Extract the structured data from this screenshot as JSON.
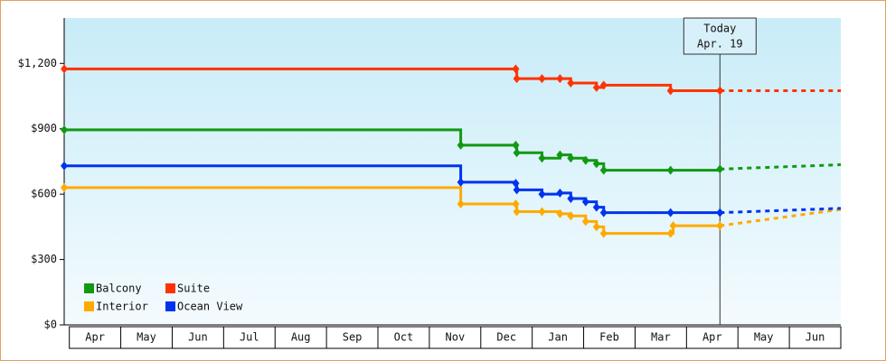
{
  "chart_data": {
    "type": "step-line",
    "xlim": [
      -0.1,
      15
    ],
    "ylim": [
      0,
      1400
    ],
    "yticks": [
      {
        "value": 0,
        "label": "$0"
      },
      {
        "value": 300,
        "label": "$300"
      },
      {
        "value": 600,
        "label": "$600"
      },
      {
        "value": 900,
        "label": "$900"
      },
      {
        "value": 1200,
        "label": "$1,200"
      }
    ],
    "xticks": [
      {
        "value": 0.5,
        "label": "Apr"
      },
      {
        "value": 1.5,
        "label": "May"
      },
      {
        "value": 2.5,
        "label": "Jun"
      },
      {
        "value": 3.5,
        "label": "Jul"
      },
      {
        "value": 4.5,
        "label": "Aug"
      },
      {
        "value": 5.5,
        "label": "Sep"
      },
      {
        "value": 6.5,
        "label": "Oct"
      },
      {
        "value": 7.5,
        "label": "Nov"
      },
      {
        "value": 8.5,
        "label": "Dec"
      },
      {
        "value": 9.5,
        "label": "Jan"
      },
      {
        "value": 10.5,
        "label": "Feb"
      },
      {
        "value": 11.5,
        "label": "Mar"
      },
      {
        "value": 12.5,
        "label": "Apr"
      },
      {
        "value": 13.5,
        "label": "May"
      },
      {
        "value": 14.5,
        "label": "Jun"
      }
    ],
    "today": {
      "x": 12.65,
      "label": [
        "Today",
        "Apr. 19"
      ]
    },
    "series": [
      {
        "name": "Balcony",
        "color": "#119911",
        "x": [
          -0.1,
          7.61,
          8.68,
          8.7,
          9.19,
          9.54,
          9.75,
          10.04,
          10.25,
          10.39,
          11.69,
          12.65
        ],
        "values": [
          895,
          825,
          825,
          790,
          765,
          780,
          765,
          755,
          740,
          710,
          710,
          715
        ],
        "forecast": {
          "x": [
            12.65,
            15
          ],
          "values": [
            715,
            735
          ]
        }
      },
      {
        "name": "Suite",
        "color": "#ff3300",
        "x": [
          -0.1,
          8.68,
          8.7,
          9.19,
          9.54,
          9.75,
          10.25,
          10.39,
          11.69,
          12.65
        ],
        "values": [
          1175,
          1175,
          1130,
          1130,
          1130,
          1110,
          1090,
          1100,
          1075,
          1075
        ],
        "forecast": {
          "x": [
            12.65,
            15
          ],
          "values": [
            1075,
            1075
          ]
        }
      },
      {
        "name": "Interior",
        "color": "#ffaa00",
        "x": [
          -0.1,
          7.61,
          8.68,
          8.7,
          9.19,
          9.54,
          9.75,
          10.04,
          10.25,
          10.39,
          11.69,
          11.74,
          12.65
        ],
        "values": [
          630,
          555,
          555,
          520,
          520,
          510,
          500,
          475,
          450,
          420,
          420,
          455,
          455
        ],
        "forecast": {
          "x": [
            12.65,
            15
          ],
          "values": [
            455,
            530
          ]
        }
      },
      {
        "name": "Ocean View",
        "color": "#0033ee",
        "x": [
          -0.1,
          7.61,
          8.68,
          8.7,
          9.19,
          9.54,
          9.75,
          10.04,
          10.25,
          10.39,
          11.69,
          12.65
        ],
        "values": [
          730,
          655,
          650,
          620,
          600,
          605,
          580,
          565,
          540,
          515,
          515,
          515
        ],
        "forecast": {
          "x": [
            12.65,
            15
          ],
          "values": [
            515,
            535
          ]
        }
      }
    ]
  }
}
